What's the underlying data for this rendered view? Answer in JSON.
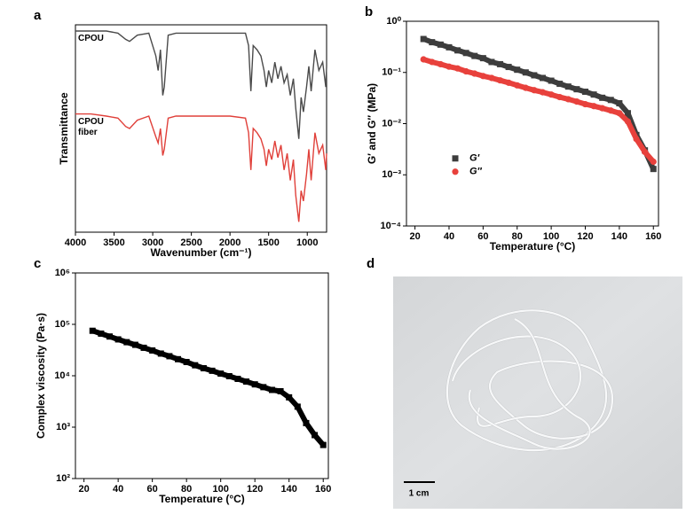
{
  "chart_data": [
    {
      "type": "line",
      "panel_label": "a",
      "x_label": "Wavenumber (cm⁻¹)",
      "y_label": "Transmittance",
      "xlim": [
        4000,
        750
      ],
      "xticks": [
        4000,
        3500,
        3000,
        2500,
        2000,
        1500,
        1000
      ],
      "ylim": [
        0,
        100
      ],
      "x": [
        4000,
        3800,
        3600,
        3450,
        3350,
        3300,
        3200,
        3050,
        2960,
        2930,
        2900,
        2870,
        2850,
        2800,
        2700,
        2500,
        2200,
        2000,
        1800,
        1760,
        1730,
        1700,
        1650,
        1600,
        1560,
        1530,
        1500,
        1460,
        1420,
        1380,
        1340,
        1300,
        1260,
        1220,
        1180,
        1150,
        1110,
        1080,
        1050,
        1010,
        980,
        950,
        900,
        850,
        800,
        760,
        750
      ],
      "series": [
        {
          "name": "CPOU",
          "color": "#4a4a4a",
          "values": [
            97,
            97,
            97,
            96,
            93,
            92,
            95,
            96,
            85,
            78,
            88,
            66,
            70,
            95,
            96,
            96,
            96,
            96,
            96,
            90,
            68,
            90,
            88,
            85,
            78,
            70,
            78,
            72,
            82,
            74,
            80,
            72,
            76,
            66,
            74,
            60,
            45,
            65,
            58,
            70,
            80,
            68,
            88,
            78,
            82,
            70,
            80
          ]
        },
        {
          "name": "CPOU fiber",
          "color": "#e0403a",
          "values": [
            57,
            57,
            56,
            55,
            51,
            50,
            54,
            56,
            46,
            43,
            50,
            37,
            40,
            55,
            56,
            56,
            56,
            56,
            55,
            48,
            30,
            50,
            48,
            45,
            40,
            32,
            40,
            35,
            44,
            36,
            42,
            30,
            38,
            25,
            35,
            18,
            5,
            20,
            15,
            28,
            40,
            25,
            48,
            38,
            42,
            30,
            38
          ]
        }
      ]
    },
    {
      "type": "scatter",
      "panel_label": "b",
      "x_label": "Temperature (°C)",
      "y_label": "G′ and G″ (MPa)",
      "xlim": [
        15,
        163
      ],
      "xticks": [
        20,
        40,
        60,
        80,
        100,
        120,
        140,
        160
      ],
      "yscale": "log",
      "ylim": [
        0.0001,
        1
      ],
      "yticks": [
        {
          "value": 0.0001,
          "label": "10⁻⁴"
        },
        {
          "value": 0.001,
          "label": "10⁻³"
        },
        {
          "value": 0.01,
          "label": "10⁻²"
        },
        {
          "value": 0.1,
          "label": "10⁻¹"
        },
        {
          "value": 1,
          "label": "10⁰"
        }
      ],
      "legend": "center-left",
      "x": [
        25,
        30,
        35,
        40,
        45,
        50,
        55,
        60,
        65,
        70,
        75,
        80,
        85,
        90,
        95,
        100,
        105,
        110,
        115,
        120,
        125,
        130,
        135,
        140,
        145,
        150,
        155,
        160
      ],
      "series": [
        {
          "name": "G′",
          "color": "#3d3d3d",
          "marker": "square",
          "values": [
            0.45,
            0.39,
            0.35,
            0.31,
            0.27,
            0.24,
            0.21,
            0.19,
            0.16,
            0.145,
            0.128,
            0.113,
            0.1,
            0.088,
            0.078,
            0.069,
            0.06,
            0.053,
            0.047,
            0.042,
            0.037,
            0.032,
            0.029,
            0.025,
            0.016,
            0.006,
            0.003,
            0.0013
          ]
        },
        {
          "name": "G″",
          "color": "#e8413c",
          "marker": "circle",
          "values": [
            0.18,
            0.16,
            0.145,
            0.13,
            0.12,
            0.105,
            0.095,
            0.085,
            0.078,
            0.07,
            0.063,
            0.056,
            0.05,
            0.045,
            0.041,
            0.037,
            0.033,
            0.03,
            0.027,
            0.024,
            0.022,
            0.02,
            0.018,
            0.016,
            0.011,
            0.005,
            0.0028,
            0.0018
          ]
        }
      ]
    },
    {
      "type": "scatter",
      "panel_label": "c",
      "x_label": "Temperature (°C)",
      "y_label": "Complex viscosity (Pa·s)",
      "xlim": [
        15,
        163
      ],
      "xticks": [
        20,
        40,
        60,
        80,
        100,
        120,
        140,
        160
      ],
      "yscale": "log",
      "ylim": [
        100,
        1000000
      ],
      "yticks": [
        {
          "value": 100,
          "label": "10²"
        },
        {
          "value": 1000,
          "label": "10³"
        },
        {
          "value": 10000,
          "label": "10⁴"
        },
        {
          "value": 100000,
          "label": "10⁵"
        },
        {
          "value": 1000000,
          "label": "10⁶"
        }
      ],
      "x": [
        25,
        30,
        35,
        40,
        45,
        50,
        55,
        60,
        65,
        70,
        75,
        80,
        85,
        90,
        95,
        100,
        105,
        110,
        115,
        120,
        125,
        130,
        135,
        140,
        145,
        150,
        155,
        160
      ],
      "series": [
        {
          "color": "#000000",
          "marker": "square",
          "values": [
            75000,
            66000,
            58000,
            51000,
            45000,
            40000,
            35000,
            31000,
            27000,
            24000,
            21000,
            18500,
            16000,
            14000,
            12500,
            11000,
            9800,
            8700,
            7700,
            6800,
            6000,
            5300,
            5000,
            3800,
            2500,
            1200,
            700,
            450
          ]
        }
      ]
    }
  ],
  "image_panel": {
    "panel_label": "d",
    "scale_bar_label": "1 cm"
  }
}
